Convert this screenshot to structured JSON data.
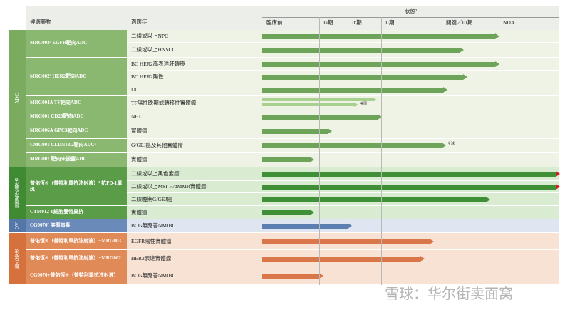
{
  "header": {
    "candidate": "候選藥物",
    "indication": "適應症",
    "status": "狀態²",
    "stages": [
      "臨床前",
      "Ia期",
      "Ib期",
      "II期",
      "關鍵／III期",
      "NDA"
    ]
  },
  "groups": [
    {
      "label": "ADC",
      "candidates": [
        {
          "name": "MRG003³ EGFR靶向ADC",
          "indications": [
            "二線或以上NPC",
            "二線或以上HNSCC"
          ]
        },
        {
          "name": "MRG002³ HER2靶向ADC",
          "indications": [
            "BC HER2高表達肝轉移",
            "BC HER2陽性",
            "UC"
          ]
        },
        {
          "name": "MRG004A TF靶向ADC",
          "indications": [
            "TF陽性晚期或轉移性實體瘤"
          ],
          "note": "美國"
        },
        {
          "name": "MRG001 CD20靶向ADC",
          "indications": [
            "NHL"
          ]
        },
        {
          "name": "MRG006A GPC3靶向ADC",
          "indications": [
            "實體瘤"
          ]
        },
        {
          "name": "CMG901 CLDN18.2靶向ADC⁵",
          "indications": [
            "G/GEJ癌及其他實體瘤"
          ],
          "note": "全球"
        },
        {
          "name": "MRG007 靶向未披露ADC",
          "indications": [
            "實體瘤"
          ]
        }
      ]
    },
    {
      "label": "腫瘤免疫療法",
      "candidates": [
        {
          "name": "普佑恆®（普特利單抗注射液）³ 抗PD-1單抗",
          "indications": [
            "二線或以上黑色素瘤¹",
            "二線或以上MSI-H/dMMR實體瘤¹",
            "二線晚期G/GEJ癌"
          ]
        },
        {
          "name": "CTM012 T細胞雙特異抗",
          "indications": [
            "實體瘤"
          ]
        }
      ]
    },
    {
      "label": "OV",
      "candidates": [
        {
          "name": "CG0070⁷ 溶瘤病毒",
          "indications": [
            "BCG無應答NMIBC"
          ]
        }
      ]
    },
    {
      "label": "聯合療法",
      "candidates": [
        {
          "name": "普佑恆®（普特利單抗注射液）+MRG003",
          "indications": [
            "EGFR陽性實體瘤"
          ]
        },
        {
          "name": "普佑恆®（普特利單抗注射液）+MRG002",
          "indications": [
            "HER2表達實體瘤"
          ]
        },
        {
          "name": "CG0070+普佑恆®（普特利單抗注射液）",
          "indications": [
            "BCG無應答NMIBC"
          ]
        }
      ]
    }
  ],
  "watermark": "雪球：华尔街卖面窝"
}
